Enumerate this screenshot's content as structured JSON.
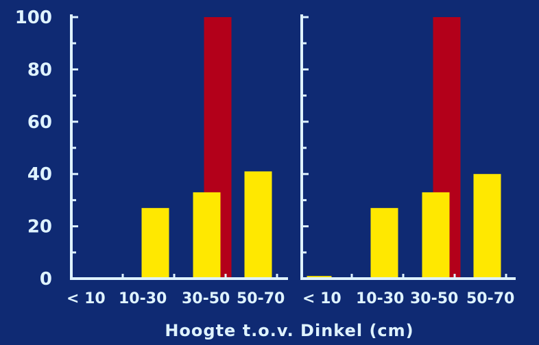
{
  "chart_data": {
    "type": "bar",
    "xlabel": "Hoogte t.o.v. Dinkel (cm)",
    "ylabel": "",
    "ylim": [
      0,
      100
    ],
    "yticks": [
      "0",
      "20",
      "40",
      "60",
      "80",
      "100"
    ],
    "colors": {
      "background": "#0f2a73",
      "axis": "#dff3ff",
      "yellow": "#ffe800",
      "red": "#b3001a"
    },
    "panels": [
      {
        "categories": [
          "< 10",
          "10-30",
          "30-50",
          "50-70"
        ],
        "series": [
          {
            "values": [
              0,
              27,
              33,
              41
            ],
            "color": "#ffe800"
          },
          {
            "values": [
              0,
              0,
              100,
              0
            ],
            "color": "#b3001a"
          }
        ]
      },
      {
        "categories": [
          "< 10",
          "10-30",
          "30-50",
          "50-70"
        ],
        "series": [
          {
            "values": [
              1,
              27,
              33,
              40
            ],
            "color": "#ffe800"
          },
          {
            "values": [
              0,
              0,
              100,
              0
            ],
            "color": "#b3001a"
          }
        ]
      }
    ]
  }
}
